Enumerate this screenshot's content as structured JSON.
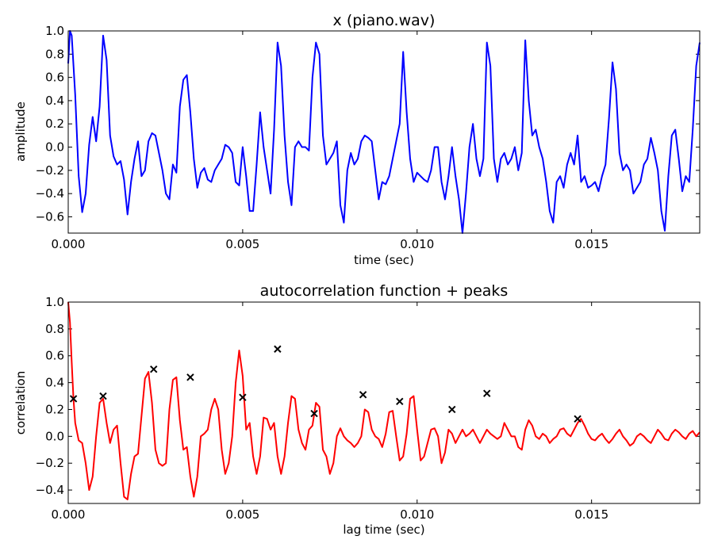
{
  "chart_data": [
    {
      "type": "line",
      "title": "x (piano.wav)",
      "xlabel": "time (sec)",
      "ylabel": "amplitude",
      "xlim": [
        0,
        0.0181
      ],
      "ylim": [
        -0.74,
        1.0
      ],
      "xticks": [
        0.0,
        0.005,
        0.01,
        0.015
      ],
      "xtick_labels": [
        "0.000",
        "0.005",
        "0.010",
        "0.015"
      ],
      "yticks": [
        -0.6,
        -0.4,
        -0.2,
        0.0,
        0.2,
        0.4,
        0.6,
        0.8,
        1.0
      ],
      "ytick_labels": [
        "−0.6",
        "−0.4",
        "−0.2",
        "0.0",
        "0.2",
        "0.4",
        "0.6",
        "0.8",
        "1.0"
      ],
      "grid": false,
      "series": [
        {
          "color": "#0000ff",
          "x": [
            0.0,
            5e-05,
            0.0001,
            0.0002,
            0.0003,
            0.0004,
            0.0005,
            0.0006,
            0.0007,
            0.0008,
            0.0009,
            0.001,
            0.0011,
            0.0012,
            0.0013,
            0.0014,
            0.0015,
            0.0016,
            0.0017,
            0.0018,
            0.0019,
            0.002,
            0.0021,
            0.0022,
            0.0023,
            0.0024,
            0.0025,
            0.0026,
            0.0027,
            0.0028,
            0.0029,
            0.003,
            0.0031,
            0.0032,
            0.0033,
            0.0034,
            0.0035,
            0.0036,
            0.0037,
            0.0038,
            0.0039,
            0.004,
            0.0041,
            0.0042,
            0.0043,
            0.0044,
            0.0045,
            0.0046,
            0.0047,
            0.0048,
            0.0049,
            0.005,
            0.0051,
            0.0052,
            0.0053,
            0.0054,
            0.0055,
            0.0056,
            0.0057,
            0.0058,
            0.0059,
            0.006,
            0.0061,
            0.0062,
            0.0063,
            0.0064,
            0.0065,
            0.0066,
            0.0067,
            0.0068,
            0.0069,
            0.007,
            0.0071,
            0.0072,
            0.0073,
            0.0074,
            0.0075,
            0.0076,
            0.0077,
            0.0078,
            0.0079,
            0.008,
            0.0081,
            0.0082,
            0.0083,
            0.0084,
            0.0085,
            0.0086,
            0.0087,
            0.0088,
            0.0089,
            0.009,
            0.0091,
            0.0092,
            0.0093,
            0.0094,
            0.0095,
            0.0096,
            0.0097,
            0.0098,
            0.0099,
            0.01,
            0.0101,
            0.0102,
            0.0103,
            0.0104,
            0.0105,
            0.0106,
            0.0107,
            0.0108,
            0.0109,
            0.011,
            0.0111,
            0.0112,
            0.0113,
            0.0114,
            0.0115,
            0.0116,
            0.0117,
            0.0118,
            0.0119,
            0.012,
            0.0121,
            0.0122,
            0.0123,
            0.0124,
            0.0125,
            0.0126,
            0.0127,
            0.0128,
            0.0129,
            0.013,
            0.0131,
            0.0132,
            0.0133,
            0.0134,
            0.0135,
            0.0136,
            0.0137,
            0.0138,
            0.0139,
            0.014,
            0.0141,
            0.0142,
            0.0143,
            0.0144,
            0.0145,
            0.0146,
            0.0147,
            0.0148,
            0.0149,
            0.015,
            0.0151,
            0.0152,
            0.0153,
            0.0154,
            0.0155,
            0.0156,
            0.0157,
            0.0158,
            0.0159,
            0.016,
            0.0161,
            0.0162,
            0.0163,
            0.0164,
            0.0165,
            0.0166,
            0.0167,
            0.0168,
            0.0169,
            0.017,
            0.0171,
            0.0172,
            0.0173,
            0.0174,
            0.0175,
            0.0176,
            0.0177,
            0.0178,
            0.0179,
            0.018,
            0.0181
          ],
          "y": [
            0.72,
            1.0,
            0.96,
            0.45,
            -0.25,
            -0.56,
            -0.4,
            0.02,
            0.26,
            0.05,
            0.35,
            0.96,
            0.75,
            0.1,
            -0.08,
            -0.15,
            -0.12,
            -0.28,
            -0.58,
            -0.3,
            -0.1,
            0.05,
            -0.25,
            -0.2,
            0.05,
            0.12,
            0.1,
            -0.05,
            -0.2,
            -0.4,
            -0.45,
            -0.15,
            -0.22,
            0.35,
            0.58,
            0.62,
            0.3,
            -0.1,
            -0.35,
            -0.22,
            -0.18,
            -0.28,
            -0.3,
            -0.2,
            -0.15,
            -0.1,
            0.02,
            0.0,
            -0.05,
            -0.3,
            -0.33,
            0.0,
            -0.25,
            -0.55,
            -0.55,
            -0.15,
            0.3,
            0.0,
            -0.2,
            -0.4,
            0.15,
            0.9,
            0.7,
            0.1,
            -0.3,
            -0.5,
            0.0,
            0.05,
            0.0,
            0.0,
            -0.03,
            0.6,
            0.9,
            0.8,
            0.1,
            -0.15,
            -0.1,
            -0.05,
            0.05,
            -0.5,
            -0.65,
            -0.2,
            -0.05,
            -0.15,
            -0.1,
            0.05,
            0.1,
            0.08,
            0.05,
            -0.2,
            -0.45,
            -0.3,
            -0.32,
            -0.25,
            -0.1,
            0.05,
            0.2,
            0.82,
            0.3,
            -0.1,
            -0.3,
            -0.22,
            -0.25,
            -0.28,
            -0.3,
            -0.2,
            0.0,
            0.0,
            -0.3,
            -0.45,
            -0.25,
            0.0,
            -0.25,
            -0.45,
            -0.74,
            -0.4,
            0.0,
            0.2,
            -0.1,
            -0.25,
            -0.1,
            0.9,
            0.7,
            -0.1,
            -0.3,
            -0.1,
            -0.05,
            -0.15,
            -0.1,
            0.0,
            -0.2,
            -0.05,
            0.92,
            0.4,
            0.1,
            0.15,
            0.0,
            -0.1,
            -0.3,
            -0.55,
            -0.65,
            -0.3,
            -0.25,
            -0.35,
            -0.15,
            -0.05,
            -0.15,
            0.1,
            -0.3,
            -0.25,
            -0.35,
            -0.33,
            -0.3,
            -0.38,
            -0.25,
            -0.15,
            0.25,
            0.73,
            0.5,
            -0.05,
            -0.2,
            -0.15,
            -0.2,
            -0.4,
            -0.35,
            -0.3,
            -0.15,
            -0.1,
            0.08,
            -0.05,
            -0.2,
            -0.55,
            -0.72,
            -0.25,
            0.1,
            0.15,
            -0.1,
            -0.38,
            -0.25,
            -0.3,
            0.15,
            0.7,
            0.9
          ]
        }
      ]
    },
    {
      "type": "line",
      "title": "autocorrelation function + peaks",
      "xlabel": "lag time (sec)",
      "ylabel": "correlation",
      "xlim": [
        0,
        0.0181
      ],
      "ylim": [
        -0.5,
        1.0
      ],
      "xticks": [
        0.0,
        0.005,
        0.01,
        0.015
      ],
      "xtick_labels": [
        "0.000",
        "0.005",
        "0.010",
        "0.015"
      ],
      "yticks": [
        -0.4,
        -0.2,
        0.0,
        0.2,
        0.4,
        0.6,
        0.8,
        1.0
      ],
      "ytick_labels": [
        "−0.4",
        "−0.2",
        "0.0",
        "0.2",
        "0.4",
        "0.6",
        "0.8",
        "1.0"
      ],
      "grid": false,
      "series": [
        {
          "color": "#ff0000",
          "x": [
            0.0,
            5e-05,
            0.0001,
            0.00015,
            0.0002,
            0.0003,
            0.0004,
            0.0005,
            0.0006,
            0.0007,
            0.0008,
            0.0009,
            0.001,
            0.0011,
            0.0012,
            0.0013,
            0.0014,
            0.0015,
            0.0016,
            0.0017,
            0.0018,
            0.0019,
            0.002,
            0.0021,
            0.0022,
            0.0023,
            0.0024,
            0.0025,
            0.0026,
            0.0027,
            0.0028,
            0.0029,
            0.003,
            0.0031,
            0.0032,
            0.0033,
            0.0034,
            0.0035,
            0.0036,
            0.0037,
            0.0038,
            0.0039,
            0.004,
            0.0041,
            0.0042,
            0.0043,
            0.0044,
            0.0045,
            0.0046,
            0.0047,
            0.0048,
            0.0049,
            0.005,
            0.0051,
            0.0052,
            0.0053,
            0.0054,
            0.0055,
            0.0056,
            0.0057,
            0.0058,
            0.0059,
            0.006,
            0.0061,
            0.0062,
            0.0063,
            0.0064,
            0.0065,
            0.0066,
            0.0067,
            0.0068,
            0.0069,
            0.007,
            0.0071,
            0.0072,
            0.0073,
            0.0074,
            0.0075,
            0.0076,
            0.0077,
            0.0078,
            0.0079,
            0.008,
            0.0081,
            0.0082,
            0.0083,
            0.0084,
            0.0085,
            0.0086,
            0.0087,
            0.0088,
            0.0089,
            0.009,
            0.0091,
            0.0092,
            0.0093,
            0.0094,
            0.0095,
            0.0096,
            0.0097,
            0.0098,
            0.0099,
            0.01,
            0.0101,
            0.0102,
            0.0103,
            0.0104,
            0.0105,
            0.0106,
            0.0107,
            0.0108,
            0.0109,
            0.011,
            0.0111,
            0.0112,
            0.0113,
            0.0114,
            0.0115,
            0.0116,
            0.0117,
            0.0118,
            0.0119,
            0.012,
            0.0121,
            0.0122,
            0.0123,
            0.0124,
            0.0125,
            0.0126,
            0.0127,
            0.0128,
            0.0129,
            0.013,
            0.0131,
            0.0132,
            0.0133,
            0.0134,
            0.0135,
            0.0136,
            0.0137,
            0.0138,
            0.0139,
            0.014,
            0.0141,
            0.0142,
            0.0143,
            0.0144,
            0.0145,
            0.0146,
            0.0147,
            0.0148,
            0.0149,
            0.015,
            0.0151,
            0.0152,
            0.0153,
            0.0154,
            0.0155,
            0.0156,
            0.0157,
            0.0158,
            0.0159,
            0.016,
            0.0161,
            0.0162,
            0.0163,
            0.0164,
            0.0165,
            0.0166,
            0.0167,
            0.0168,
            0.0169,
            0.017,
            0.0171,
            0.0172,
            0.0173,
            0.0174,
            0.0175,
            0.0176,
            0.0177,
            0.0178,
            0.0179,
            0.018,
            0.0181
          ],
          "y": [
            1.0,
            0.85,
            0.55,
            0.28,
            0.1,
            -0.03,
            -0.05,
            -0.2,
            -0.4,
            -0.3,
            0.0,
            0.25,
            0.28,
            0.1,
            -0.05,
            0.05,
            0.08,
            -0.2,
            -0.45,
            -0.47,
            -0.28,
            -0.15,
            -0.13,
            0.15,
            0.43,
            0.48,
            0.25,
            -0.1,
            -0.2,
            -0.22,
            -0.2,
            0.2,
            0.42,
            0.44,
            0.12,
            -0.1,
            -0.08,
            -0.3,
            -0.45,
            -0.3,
            0.0,
            0.02,
            0.05,
            0.2,
            0.28,
            0.2,
            -0.1,
            -0.28,
            -0.2,
            0.0,
            0.4,
            0.64,
            0.45,
            0.05,
            0.1,
            -0.15,
            -0.28,
            -0.15,
            0.14,
            0.13,
            0.05,
            0.1,
            -0.15,
            -0.28,
            -0.15,
            0.1,
            0.3,
            0.28,
            0.05,
            -0.05,
            -0.1,
            0.05,
            0.08,
            0.25,
            0.22,
            -0.1,
            -0.15,
            -0.28,
            -0.2,
            0.0,
            0.06,
            0.0,
            -0.03,
            -0.05,
            -0.08,
            -0.05,
            0.0,
            0.2,
            0.18,
            0.05,
            0.0,
            -0.02,
            -0.08,
            0.02,
            0.18,
            0.19,
            0.0,
            -0.18,
            -0.15,
            0.02,
            0.28,
            0.3,
            0.05,
            -0.18,
            -0.15,
            -0.05,
            0.05,
            0.06,
            0.0,
            -0.2,
            -0.12,
            0.05,
            0.02,
            -0.05,
            0.0,
            0.05,
            0.0,
            0.02,
            0.05,
            0.0,
            -0.05,
            0.0,
            0.05,
            0.02,
            0.0,
            -0.02,
            0.0,
            0.1,
            0.05,
            0.0,
            0.0,
            -0.08,
            -0.1,
            0.05,
            0.12,
            0.08,
            0.0,
            -0.02,
            0.02,
            0.0,
            -0.05,
            -0.02,
            0.0,
            0.05,
            0.06,
            0.02,
            0.0,
            0.05,
            0.1,
            0.13,
            0.08,
            0.02,
            -0.02,
            -0.03,
            0.0,
            0.02,
            -0.02,
            -0.05,
            -0.02,
            0.02,
            0.05,
            0.0,
            -0.03,
            -0.07,
            -0.05,
            0.0,
            0.02,
            0.0,
            -0.03,
            -0.05,
            0.0,
            0.05,
            0.02,
            -0.02,
            -0.03,
            0.02,
            0.05,
            0.03,
            0.0,
            -0.02,
            0.02,
            0.04,
            0.0,
            0.03
          ]
        }
      ],
      "peaks": {
        "marker": "x",
        "color": "#000000",
        "x": [
          0.00015,
          0.001,
          0.00245,
          0.0035,
          0.005,
          0.006,
          0.00705,
          0.00845,
          0.0095,
          0.011,
          0.012,
          0.0146
        ],
        "y": [
          0.28,
          0.3,
          0.5,
          0.44,
          0.29,
          0.65,
          0.17,
          0.31,
          0.26,
          0.2,
          0.32,
          0.13
        ]
      }
    }
  ]
}
